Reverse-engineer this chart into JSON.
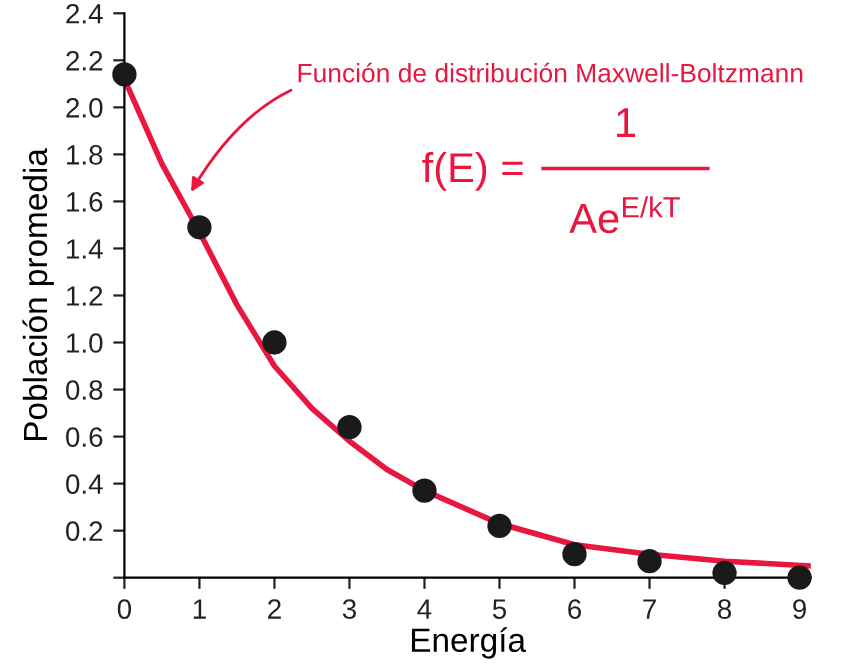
{
  "chart_data": {
    "type": "scatter",
    "xlabel": "Energía",
    "ylabel": "Población promedia",
    "xlim": [
      0,
      9.15
    ],
    "ylim": [
      0,
      2.4
    ],
    "xticks": [
      0,
      1,
      2,
      3,
      4,
      5,
      6,
      7,
      8,
      9
    ],
    "yticks": [
      {
        "value": 0,
        "label": null
      },
      0.2,
      0.4,
      0.6,
      0.8,
      {
        "value": 1,
        "label": "1.0"
      },
      1.2,
      1.4,
      1.6,
      1.8,
      {
        "value": 2,
        "label": "2.0"
      },
      2.2,
      2.4
    ],
    "grid": false,
    "legend": false,
    "series": [
      {
        "type": "line",
        "color": "#e8173f",
        "marker": "none",
        "line_style": "solid",
        "x": [
          0,
          0.5,
          1,
          1.5,
          2,
          2.5,
          3,
          3.5,
          4,
          5,
          6,
          7,
          8,
          9.15
        ],
        "values": [
          2.12,
          1.76,
          1.47,
          1.16,
          0.9,
          0.72,
          0.58,
          0.46,
          0.37,
          0.23,
          0.14,
          0.1,
          0.07,
          0.05
        ]
      },
      {
        "color": "#1a1a1a",
        "marker": "circle",
        "x": [
          0,
          1,
          2,
          3,
          4,
          5,
          6,
          7,
          8,
          9
        ],
        "values": [
          2.14,
          1.49,
          1.0,
          0.64,
          0.37,
          0.22,
          0.1,
          0.07,
          0.02,
          0.0
        ]
      }
    ],
    "annotations": [
      {
        "text": "Función de distribución Maxwell-Boltzmann",
        "x": 0.85,
        "y": 1.62
      },
      "f(E) = ",
      "1",
      "Ae$^{E/kT}$"
    ]
  }
}
